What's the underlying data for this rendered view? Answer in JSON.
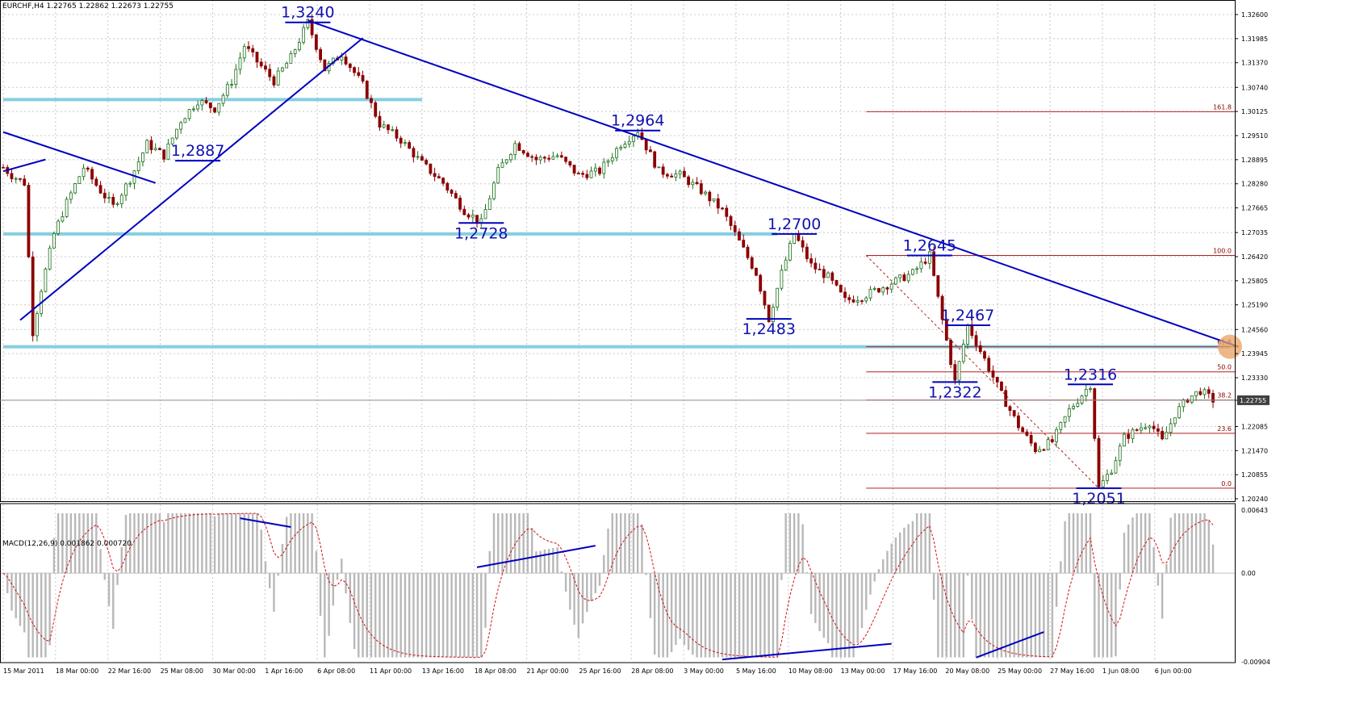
{
  "window": {
    "header": "EURCHF,H4  1.22765 1.22862 1.22673 1.22755"
  },
  "macd_header": "MACD(12,26,9) 0.001862 0.000720",
  "colors": {
    "grid": "#c8c8c8",
    "axis": "#000000",
    "trend": "#0000c0",
    "support": "#87cee0",
    "fib": "#b22222",
    "candle": "#1a6e1a",
    "candle_down": "#8b0000",
    "macd_hist": "#b8b8b8",
    "macd_signal": "#d01010",
    "highlight": "#e8a060",
    "price_box": "#404040"
  },
  "chart_data": [
    {
      "type": "candlestick",
      "symbol": "EURCHF",
      "timeframe": "H4",
      "ylim": [
        1.2024,
        1.326
      ],
      "price_ticks": [
        "1.32600",
        "1.31985",
        "1.31370",
        "1.30740",
        "1.30125",
        "1.29510",
        "1.28895",
        "1.28280",
        "1.27665",
        "1.27035",
        "1.26420",
        "1.25805",
        "1.25190",
        "1.24560",
        "1.23945",
        "1.23330",
        "1.22755",
        "1.22085",
        "1.21470",
        "1.20855",
        "1.20240"
      ],
      "current_price": "1.22755",
      "time_ticks": [
        "15 Mar 2011",
        "18 Mar 00:00",
        "22 Mar 16:00",
        "25 Mar 08:00",
        "30 Mar 00:00",
        "1 Apr 16:00",
        "6 Apr 08:00",
        "11 Apr 00:00",
        "13 Apr 16:00",
        "18 Apr 08:00",
        "21 Apr 00:00",
        "25 Apr 16:00",
        "28 Apr 08:00",
        "3 May 00:00",
        "5 May 16:00",
        "10 May 08:00",
        "13 May 00:00",
        "17 May 16:00",
        "20 May 08:00",
        "25 May 00:00",
        "27 May 16:00",
        "1 Jun 08:00",
        "6 Jun 00:00"
      ],
      "swing_points": [
        {
          "label": "1,3240",
          "t": 72,
          "price": 1.324
        },
        {
          "label": "1,2887",
          "t": 46,
          "price": 1.2887
        },
        {
          "label": "1,2964",
          "t": 150,
          "price": 1.2964
        },
        {
          "label": "1,2728",
          "t": 113,
          "price": 1.2728
        },
        {
          "label": "1,2700",
          "t": 187,
          "price": 1.27
        },
        {
          "label": "1,2645",
          "t": 219,
          "price": 1.2645
        },
        {
          "label": "1,2483",
          "t": 181,
          "price": 1.2483
        },
        {
          "label": "1,2467",
          "t": 228,
          "price": 1.2467
        },
        {
          "label": "1,2322",
          "t": 225,
          "price": 1.2322
        },
        {
          "label": "1,2316",
          "t": 257,
          "price": 1.2316
        },
        {
          "label": "1,2051",
          "t": 259,
          "price": 1.2051
        }
      ],
      "fib_levels": [
        {
          "label": "161.8",
          "price": 1.3012
        },
        {
          "label": "100.0",
          "price": 1.2645
        },
        {
          "label": "61.8",
          "price": 1.2412
        },
        {
          "label": "50.0",
          "price": 1.2348
        },
        {
          "label": "38.2",
          "price": 1.2276
        },
        {
          "label": "23.6",
          "price": 1.2191
        },
        {
          "label": "0.0",
          "price": 1.2051
        }
      ],
      "support_levels": [
        1.3043,
        1.27,
        1.2412
      ]
    },
    {
      "type": "macd",
      "params": "12,26,9",
      "zero_label": "0.00",
      "ylim": [
        -0.00904,
        0.00643
      ],
      "value_ticks": [
        "0.00643",
        "0.00",
        "-0.00904"
      ]
    }
  ]
}
